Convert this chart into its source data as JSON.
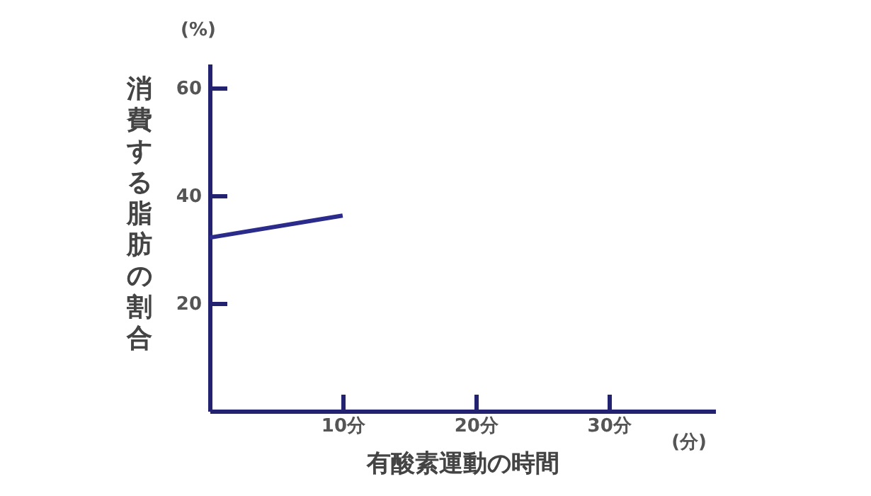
{
  "chart_data": {
    "type": "line",
    "xlabel": "有酸素運動の時間",
    "ylabel": "消費する脂肪の割合",
    "x": [
      0,
      10
    ],
    "series": [
      {
        "color": "#2b2b8c",
        "values": [
          32.2,
          36.3
        ]
      }
    ],
    "xlim": [
      0,
      38
    ],
    "xticks": [
      {
        "value": 10,
        "label": "10分"
      },
      {
        "value": 20,
        "label": "20分"
      },
      {
        "value": 30,
        "label": "30分"
      }
    ],
    "ylim": [
      0,
      64.5
    ],
    "yticks": [
      20,
      40,
      60
    ],
    "annotations": [
      "(%)",
      "(分)"
    ],
    "grid": false,
    "legend": false,
    "marker": "none",
    "line_style": "solid"
  }
}
